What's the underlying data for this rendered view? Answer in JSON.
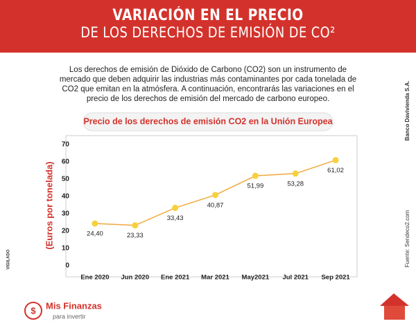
{
  "header": {
    "line1": "VARIACIÓN EN EL PRECIO",
    "line2": "DE LOS DERECHOS DE EMISIÓN DE CO²"
  },
  "intro": "Los derechos de emisión de Dióxido de Carbono (CO2) son un instrumento de mercado que deben adquirir las industrias más contaminantes por cada tonelada de CO2 que emitan en la atmósfera. A continuación, encontrarás las variaciones en el precio de los derechos de emisión del mercado de carbono europeo.",
  "chart_data": {
    "type": "line",
    "title": "Precio de los derechos de emisión CO2 en la Unión Europea",
    "y_label": "(Euros por tonelada)",
    "categories": [
      "Ene 2020",
      "Jun 2020",
      "Ene 2021",
      "Mar 2021",
      "May2021",
      "Jul 2021",
      "Sep 2021"
    ],
    "values": [
      24.4,
      23.33,
      33.43,
      40.87,
      51.99,
      53.28,
      61.02
    ],
    "value_labels": [
      "24,40",
      "23,33",
      "33,43",
      "40,87",
      "51,99",
      "53,28",
      "61,02"
    ],
    "color": "#f2a73b",
    "marker_color": "#f6d13a",
    "ylim": [
      0,
      70
    ],
    "yticks": [
      0,
      10,
      20,
      30,
      40,
      50,
      60,
      70
    ],
    "grid": false
  },
  "side": {
    "company": "Banco Davivienda S.A.",
    "source": "Fuente: Sendeco2.com",
    "vigilado": "VIGILADO"
  },
  "footer": {
    "brand": "Mis Finanzas",
    "tagline": "para invertir"
  }
}
